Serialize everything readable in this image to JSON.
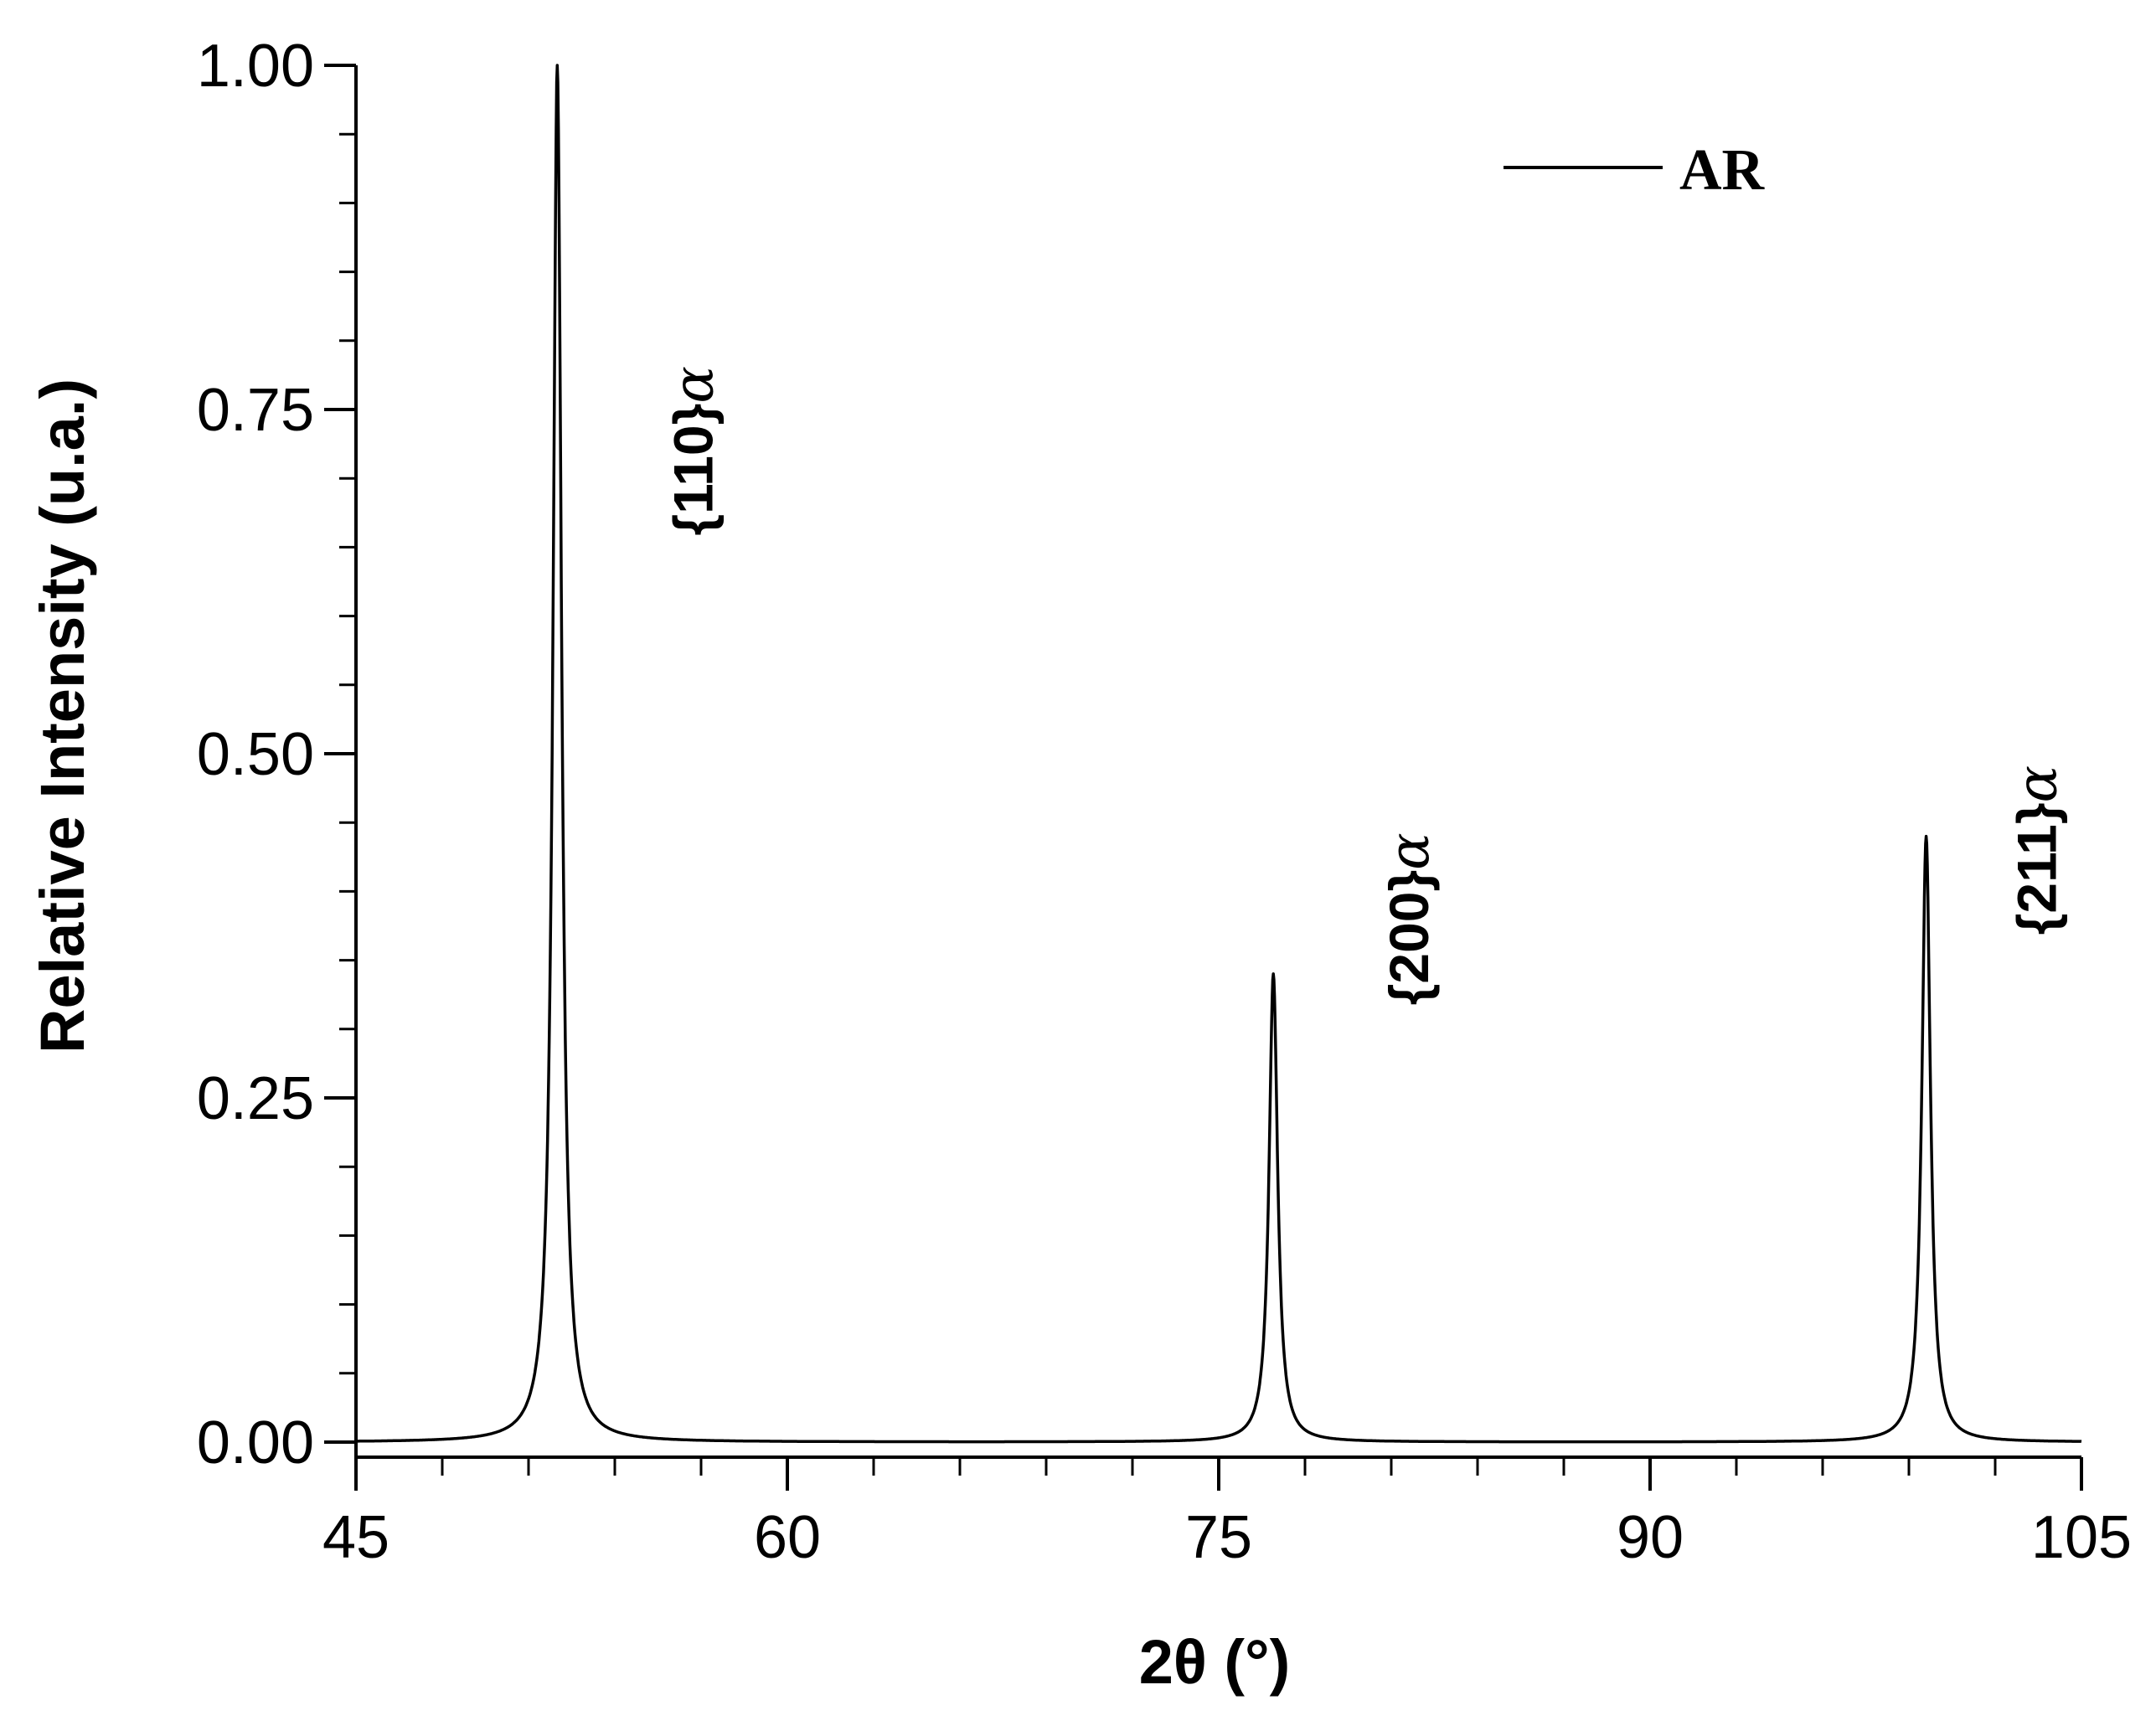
{
  "chart_data": {
    "type": "line",
    "xlabel": "2θ (°)",
    "ylabel": "Relative Intensity (u.a.)",
    "xlim": [
      45,
      105
    ],
    "ylim": [
      0.0,
      1.0
    ],
    "x_ticks": [
      "45",
      "60",
      "75",
      "90",
      "105"
    ],
    "y_ticks": [
      "0.00",
      "0.25",
      "0.50",
      "0.75",
      "1.00"
    ],
    "grid": false,
    "legend_position": "top-right",
    "series": [
      {
        "name": "AR",
        "color": "#000000",
        "peaks": [
          {
            "x": 52.0,
            "y": 1.0,
            "label_main": "{110}",
            "label_greek": "α"
          },
          {
            "x": 76.9,
            "y": 0.34,
            "label_main": "{200}",
            "label_greek": "α"
          },
          {
            "x": 99.6,
            "y": 0.44,
            "label_main": "{211}",
            "label_greek": "α"
          }
        ],
        "baseline": 0.0
      }
    ]
  }
}
